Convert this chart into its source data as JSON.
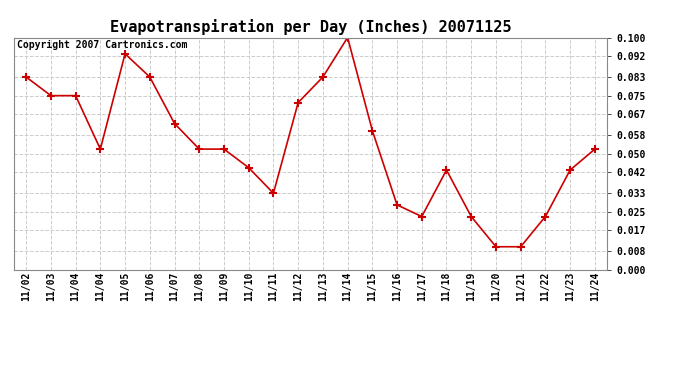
{
  "title": "Evapotranspiration per Day (Inches) 20071125",
  "copyright_text": "Copyright 2007 Cartronics.com",
  "dates": [
    "11/02",
    "11/03",
    "11/04",
    "11/04",
    "11/05",
    "11/06",
    "11/07",
    "11/08",
    "11/09",
    "11/10",
    "11/11",
    "11/12",
    "11/13",
    "11/14",
    "11/15",
    "11/16",
    "11/17",
    "11/18",
    "11/19",
    "11/20",
    "11/21",
    "11/22",
    "11/23",
    "11/24"
  ],
  "values": [
    0.083,
    0.075,
    0.075,
    0.052,
    0.093,
    0.083,
    0.063,
    0.052,
    0.052,
    0.044,
    0.033,
    0.072,
    0.083,
    0.1,
    0.06,
    0.028,
    0.023,
    0.043,
    0.023,
    0.01,
    0.01,
    0.023,
    0.043,
    0.052
  ],
  "line_color": "#cc0000",
  "marker": "+",
  "marker_size": 6,
  "marker_lw": 1.5,
  "line_width": 1.2,
  "bg_color": "#ffffff",
  "plot_bg_color": "#ffffff",
  "grid_color": "#cccccc",
  "grid_style": "--",
  "ylim": [
    0.0,
    0.1
  ],
  "yticks": [
    0.0,
    0.008,
    0.017,
    0.025,
    0.033,
    0.042,
    0.05,
    0.058,
    0.067,
    0.075,
    0.083,
    0.092,
    0.1
  ],
  "title_fontsize": 11,
  "tick_fontsize": 7,
  "copyright_fontsize": 7
}
